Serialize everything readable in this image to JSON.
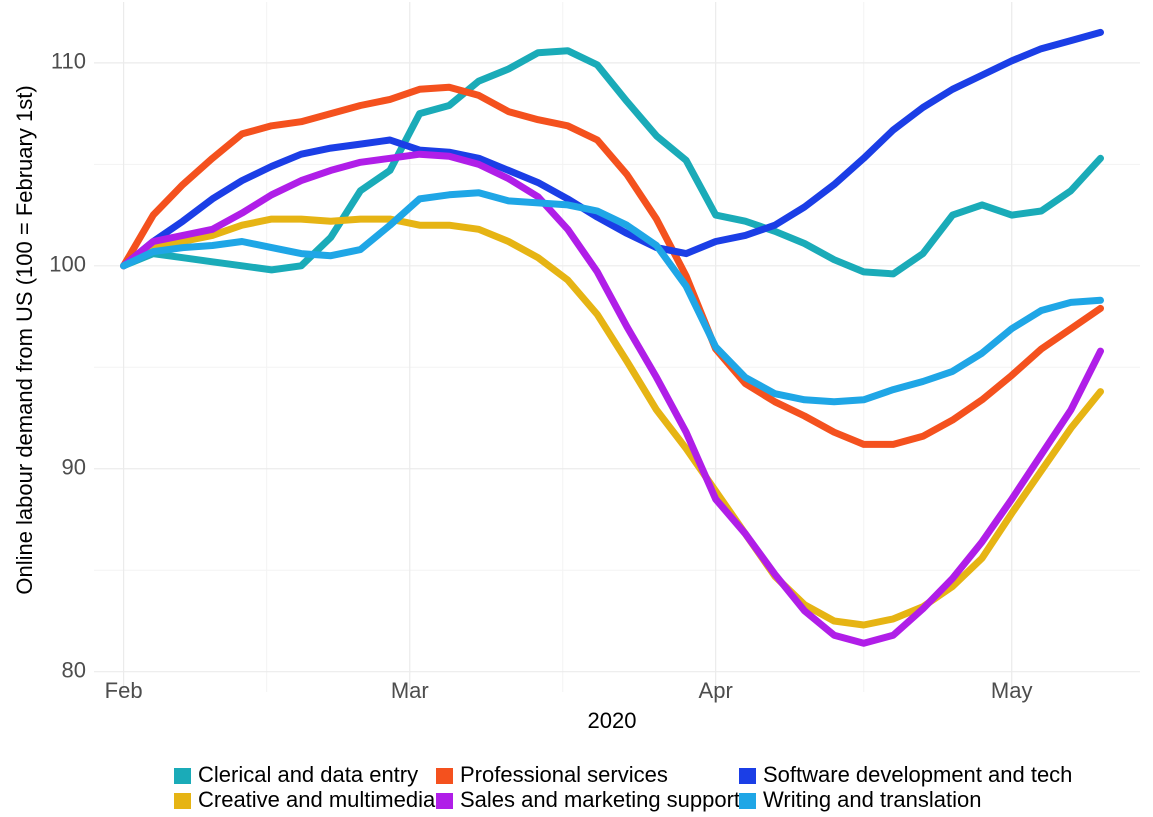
{
  "chart_data": {
    "type": "line",
    "xlabel": "2020",
    "ylabel": "Online labour demand from US (100 = February 1st)",
    "x": [
      0,
      3,
      6,
      9,
      12,
      15,
      18,
      21,
      24,
      27,
      30,
      33,
      36,
      39,
      42,
      45,
      48,
      51,
      54,
      57,
      60,
      63,
      66,
      69,
      72,
      75,
      78,
      81,
      84,
      87,
      90,
      93,
      96,
      99
    ],
    "xlim": [
      -3,
      103
    ],
    "xticks": [
      {
        "value": 0,
        "label": "Feb"
      },
      {
        "value": 29,
        "label": "Mar"
      },
      {
        "value": 60,
        "label": "Apr"
      },
      {
        "value": 90,
        "label": "May"
      }
    ],
    "xminor": [
      14.5,
      44.5,
      75
    ],
    "ylim": [
      79,
      113
    ],
    "yticks": [
      80,
      90,
      100,
      110
    ],
    "yminor": [
      85,
      95,
      105
    ],
    "grid": true,
    "legend": "bottom",
    "series": [
      {
        "name": "Clerical and data entry",
        "color": "#1aabb8",
        "values": [
          100,
          100.6,
          100.4,
          100.2,
          100.0,
          99.8,
          100.0,
          101.4,
          103.7,
          104.7,
          107.5,
          107.9,
          109.1,
          109.7,
          110.5,
          110.6,
          109.9,
          108.1,
          106.4,
          105.2,
          102.5,
          102.2,
          101.7,
          101.1,
          100.3,
          99.7,
          99.6,
          100.6,
          102.5,
          103.0,
          102.5,
          102.7,
          103.7,
          105.3
        ]
      },
      {
        "name": "Professional services",
        "color": "#f4511e",
        "values": [
          100,
          102.5,
          104.0,
          105.3,
          106.5,
          106.9,
          107.1,
          107.5,
          107.9,
          108.2,
          108.7,
          108.8,
          108.4,
          107.6,
          107.2,
          106.9,
          106.2,
          104.5,
          102.3,
          99.5,
          95.9,
          94.2,
          93.3,
          92.6,
          91.8,
          91.2,
          91.2,
          91.6,
          92.4,
          93.4,
          94.6,
          95.9,
          96.9,
          97.9
        ]
      },
      {
        "name": "Software development and tech",
        "color": "#1b3ee6",
        "values": [
          100,
          101.2,
          102.2,
          103.3,
          104.2,
          104.9,
          105.5,
          105.8,
          106.0,
          106.2,
          105.7,
          105.6,
          105.3,
          104.7,
          104.1,
          103.3,
          102.4,
          101.6,
          100.9,
          100.6,
          101.2,
          101.5,
          102.0,
          102.9,
          104.0,
          105.3,
          106.7,
          107.8,
          108.7,
          109.4,
          110.1,
          110.7,
          111.1,
          111.5
        ]
      },
      {
        "name": "Creative and multimedia",
        "color": "#e6b414",
        "values": [
          100,
          100.9,
          101.2,
          101.5,
          102.0,
          102.3,
          102.3,
          102.2,
          102.3,
          102.3,
          102.0,
          102.0,
          101.8,
          101.2,
          100.4,
          99.3,
          97.6,
          95.3,
          92.9,
          91.0,
          88.9,
          86.8,
          84.7,
          83.3,
          82.5,
          82.3,
          82.6,
          83.2,
          84.2,
          85.6,
          87.8,
          89.9,
          92.0,
          93.8
        ]
      },
      {
        "name": "Sales and marketing support",
        "color": "#b01ee8",
        "values": [
          100,
          101.2,
          101.5,
          101.8,
          102.6,
          103.5,
          104.2,
          104.7,
          105.1,
          105.3,
          105.5,
          105.4,
          105.0,
          104.3,
          103.4,
          101.8,
          99.7,
          97.0,
          94.5,
          91.8,
          88.5,
          86.8,
          84.8,
          83.0,
          81.8,
          81.4,
          81.8,
          83.1,
          84.6,
          86.4,
          88.5,
          90.7,
          92.9,
          95.8
        ]
      },
      {
        "name": "Writing and translation",
        "color": "#1fa6e6",
        "values": [
          100,
          100.7,
          100.9,
          101.0,
          101.2,
          100.9,
          100.6,
          100.5,
          100.8,
          102.0,
          103.3,
          103.5,
          103.6,
          103.2,
          103.1,
          103.0,
          102.7,
          102.0,
          101.0,
          99.0,
          96.0,
          94.5,
          93.7,
          93.4,
          93.3,
          93.4,
          93.9,
          94.3,
          94.8,
          95.7,
          96.9,
          97.8,
          98.2,
          98.3
        ]
      }
    ]
  }
}
